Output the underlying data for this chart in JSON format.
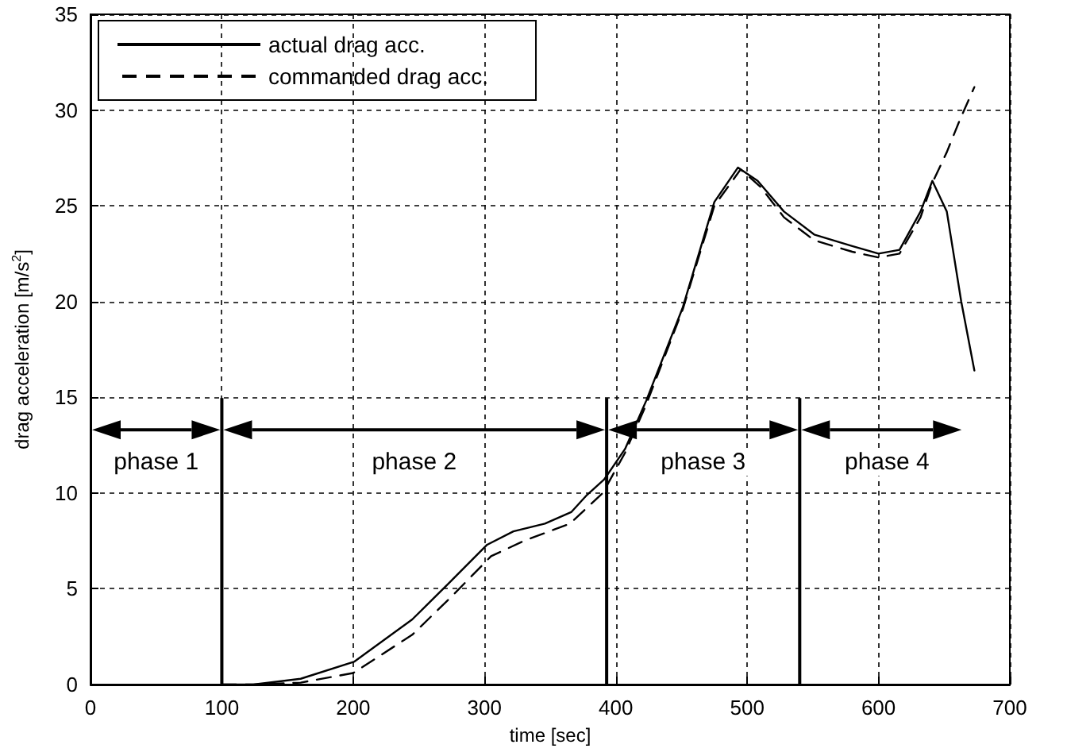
{
  "chart_data": {
    "type": "line",
    "xlabel": "time [sec]",
    "ylabel": "drag acceleration [m/s$^{2}$]",
    "xlim": [
      0,
      700
    ],
    "xticks": [
      0,
      100,
      200,
      300,
      400,
      500,
      600,
      700
    ],
    "ylim": [
      0,
      35
    ],
    "yticks": [
      0,
      5,
      10,
      15,
      20,
      25,
      30,
      35
    ],
    "grid": true,
    "legend": "top left",
    "marker": "none",
    "series": [
      {
        "name": "actual drag acc.",
        "color": "#000000",
        "line_style": "solid",
        "x": [
          100,
          124,
          160,
          201,
          245,
          273,
          302,
          322,
          346,
          366,
          378,
          391,
          407,
          423,
          451,
          475,
          493,
          508,
          528,
          551,
          580,
          600,
          616,
          632,
          641,
          652,
          663,
          673
        ],
        "values": [
          0,
          0,
          0.3,
          1.2,
          3.4,
          5.3,
          7.3,
          8.0,
          8.4,
          9.0,
          9.9,
          10.7,
          12.3,
          14.8,
          19.7,
          25.2,
          27.0,
          26.3,
          24.7,
          23.5,
          22.9,
          22.5,
          22.7,
          24.7,
          26.3,
          24.7,
          20.0,
          16.4
        ]
      },
      {
        "name": "commanded drag acc.",
        "color": "#000000",
        "line_style": "dashed",
        "x": [
          100,
          124,
          160,
          200,
          245,
          275,
          305,
          330,
          365,
          390,
          407,
          423,
          451,
          475,
          495,
          510,
          528,
          551,
          580,
          600,
          616,
          632,
          641,
          652,
          662,
          673
        ],
        "values": [
          0,
          0,
          0.1,
          0.6,
          2.6,
          4.6,
          6.7,
          7.5,
          8.4,
          10.0,
          12.1,
          14.6,
          19.6,
          25.0,
          26.9,
          26.0,
          24.4,
          23.2,
          22.6,
          22.3,
          22.5,
          24.4,
          26.2,
          27.8,
          29.5,
          31.2
        ]
      }
    ],
    "ref_lines": [
      {
        "axis": "x",
        "value": 100
      },
      {
        "axis": "x",
        "value": 393
      },
      {
        "axis": "x",
        "value": 540
      }
    ],
    "annotations": [
      "phase 1",
      "phase 2",
      "phase 3",
      "phase 4"
    ]
  }
}
